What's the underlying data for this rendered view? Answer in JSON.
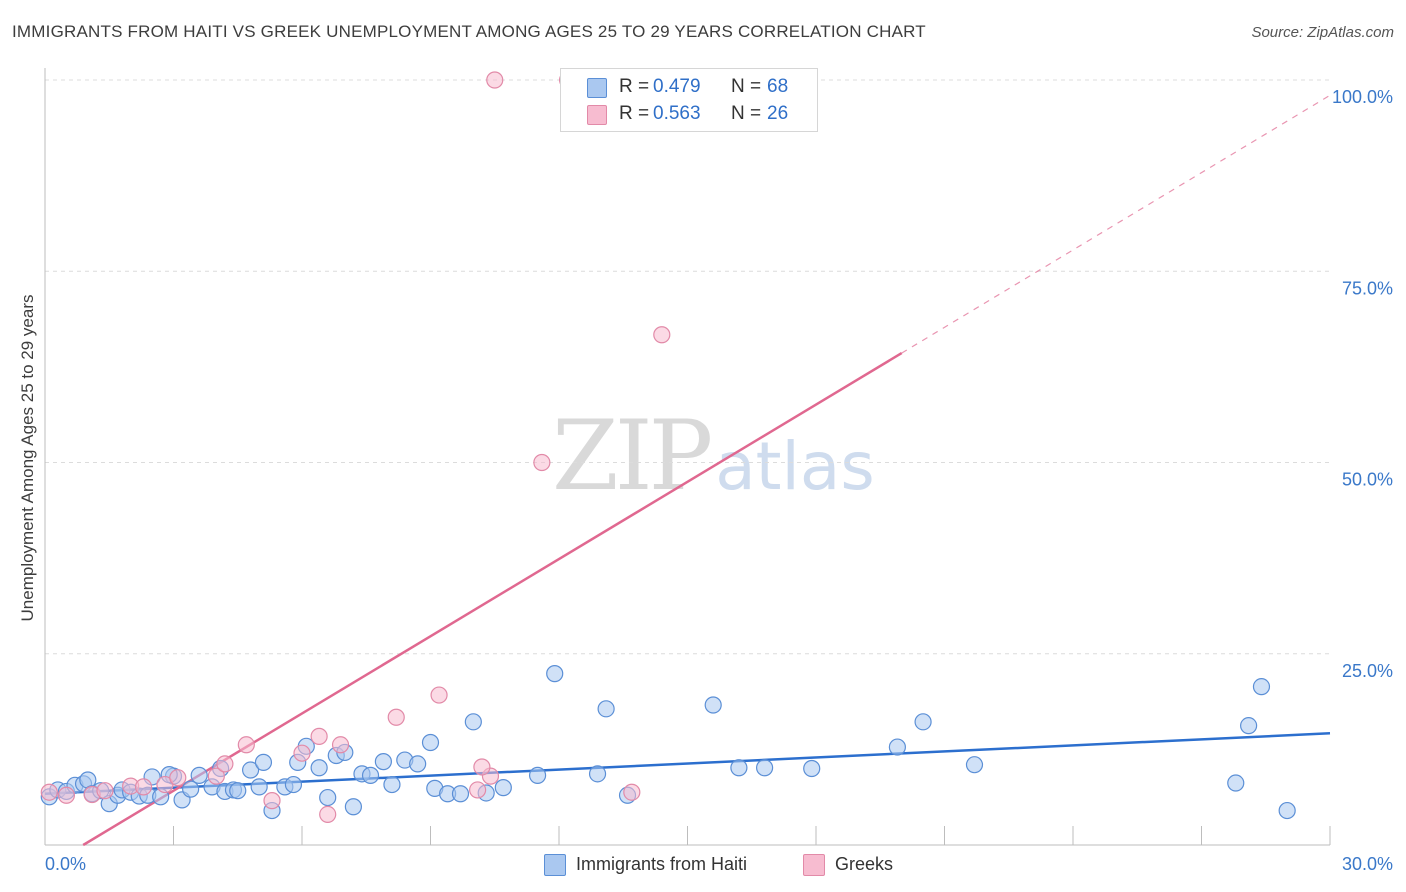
{
  "header": {
    "title": "IMMIGRANTS FROM HAITI VS GREEK UNEMPLOYMENT AMONG AGES 25 TO 29 YEARS CORRELATION CHART",
    "source": "Source: ZipAtlas.com"
  },
  "watermark": {
    "zip": "ZIP",
    "atlas": "atlas"
  },
  "colors": {
    "blue_fill": "#aac8f0",
    "blue_stroke": "#5b8fd6",
    "blue_line": "#2c6fce",
    "pink_fill": "#f7bcd0",
    "pink_stroke": "#e28aa8",
    "pink_line": "#e06890",
    "axis_text": "#3a78c9",
    "grid": "#dcdcdc"
  },
  "stats": {
    "rows": [
      {
        "r_label": "R =",
        "r_value": "0.479",
        "n_label": "N =",
        "n_value": "68"
      },
      {
        "r_label": "R =",
        "r_value": "0.563",
        "n_label": "N =",
        "n_value": "26"
      }
    ]
  },
  "legend": {
    "items": [
      "Immigrants from Haiti",
      "Greeks"
    ]
  },
  "chart_data": {
    "type": "scatter",
    "title": "IMMIGRANTS FROM HAITI VS GREEK UNEMPLOYMENT AMONG AGES 25 TO 29 YEARS CORRELATION CHART",
    "xlabel": "",
    "ylabel": "Unemployment Among Ages 25 to 29 years",
    "xlim": [
      0,
      30
    ],
    "ylim": [
      0,
      100
    ],
    "x_tick_labels": [
      "0.0%",
      "30.0%"
    ],
    "y_ticks": [
      25,
      50,
      75,
      100
    ],
    "y_tick_labels": [
      "25.0%",
      "50.0%",
      "75.0%",
      "100.0%"
    ],
    "grid": true,
    "series": [
      {
        "name": "Immigrants from Haiti",
        "R": 0.479,
        "N": 68,
        "trend": {
          "x0": 0,
          "y0": 6.7,
          "x1": 30,
          "y1": 14.6
        },
        "points": [
          [
            0.1,
            6.3
          ],
          [
            0.3,
            7.2
          ],
          [
            0.5,
            7.0
          ],
          [
            0.7,
            7.8
          ],
          [
            0.9,
            8.0
          ],
          [
            1.0,
            8.5
          ],
          [
            1.1,
            6.7
          ],
          [
            1.3,
            7.1
          ],
          [
            1.5,
            5.4
          ],
          [
            1.7,
            6.5
          ],
          [
            1.8,
            7.2
          ],
          [
            2.0,
            6.9
          ],
          [
            2.2,
            6.4
          ],
          [
            2.4,
            6.5
          ],
          [
            2.5,
            8.9
          ],
          [
            2.7,
            6.3
          ],
          [
            3.0,
            9.0
          ],
          [
            3.2,
            5.9
          ],
          [
            3.4,
            7.3
          ],
          [
            3.6,
            9.1
          ],
          [
            3.9,
            7.6
          ],
          [
            4.1,
            10.0
          ],
          [
            4.2,
            7.0
          ],
          [
            4.4,
            7.2
          ],
          [
            4.5,
            7.1
          ],
          [
            4.8,
            9.8
          ],
          [
            5.0,
            7.6
          ],
          [
            5.1,
            10.8
          ],
          [
            5.3,
            4.5
          ],
          [
            5.6,
            7.6
          ],
          [
            5.9,
            10.8
          ],
          [
            6.1,
            12.9
          ],
          [
            6.4,
            10.1
          ],
          [
            6.6,
            6.2
          ],
          [
            6.8,
            11.7
          ],
          [
            7.0,
            12.1
          ],
          [
            7.2,
            5.0
          ],
          [
            7.4,
            9.3
          ],
          [
            7.6,
            9.1
          ],
          [
            7.9,
            10.9
          ],
          [
            8.1,
            7.9
          ],
          [
            8.4,
            11.1
          ],
          [
            8.7,
            10.6
          ],
          [
            9.0,
            13.4
          ],
          [
            9.1,
            7.4
          ],
          [
            9.4,
            6.7
          ],
          [
            9.7,
            6.7
          ],
          [
            10.0,
            16.1
          ],
          [
            10.3,
            6.8
          ],
          [
            10.7,
            7.5
          ],
          [
            11.5,
            9.1
          ],
          [
            11.9,
            22.4
          ],
          [
            12.9,
            9.3
          ],
          [
            13.1,
            17.8
          ],
          [
            13.6,
            6.5
          ],
          [
            15.6,
            18.3
          ],
          [
            16.2,
            10.1
          ],
          [
            16.8,
            10.1
          ],
          [
            17.9,
            10.0
          ],
          [
            19.9,
            12.8
          ],
          [
            20.5,
            16.1
          ],
          [
            21.7,
            10.5
          ],
          [
            27.8,
            8.1
          ],
          [
            28.1,
            15.6
          ],
          [
            28.4,
            20.7
          ],
          [
            29.0,
            4.5
          ],
          [
            2.9,
            9.2
          ],
          [
            5.8,
            7.9
          ]
        ]
      },
      {
        "name": "Greeks",
        "R": 0.563,
        "N": 26,
        "trend": {
          "x0": 0,
          "y0": -3.0,
          "x1": 20,
          "y1": 64.3,
          "dashed_to_x": 30,
          "dashed_to_y": 98.0
        },
        "points": [
          [
            0.1,
            6.9
          ],
          [
            0.5,
            6.5
          ],
          [
            1.1,
            6.6
          ],
          [
            1.4,
            7.1
          ],
          [
            2.0,
            7.7
          ],
          [
            2.8,
            7.9
          ],
          [
            3.1,
            8.8
          ],
          [
            4.0,
            9.0
          ],
          [
            4.2,
            10.6
          ],
          [
            4.7,
            13.1
          ],
          [
            5.3,
            5.8
          ],
          [
            6.0,
            12.0
          ],
          [
            6.4,
            14.2
          ],
          [
            6.6,
            4.0
          ],
          [
            6.9,
            13.1
          ],
          [
            8.2,
            16.7
          ],
          [
            9.2,
            19.6
          ],
          [
            10.1,
            7.2
          ],
          [
            10.4,
            9.0
          ],
          [
            10.2,
            10.2
          ],
          [
            14.4,
            66.7
          ],
          [
            13.7,
            6.9
          ],
          [
            11.6,
            50.0
          ],
          [
            12.2,
            100.0
          ],
          [
            10.5,
            100.0
          ],
          [
            2.3,
            7.6
          ]
        ]
      }
    ]
  }
}
